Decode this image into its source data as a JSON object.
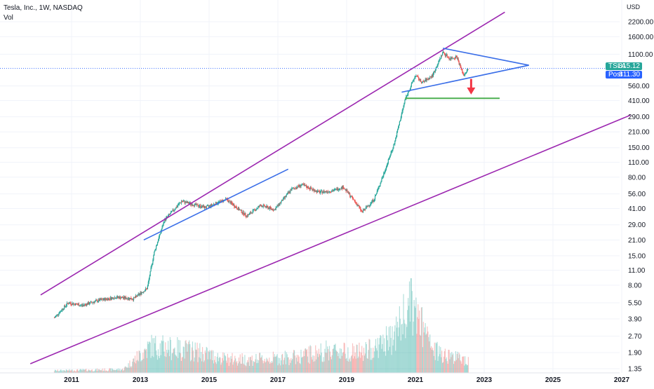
{
  "header": {
    "title": "Tesla, Inc., 1W, NASDAQ",
    "volume_label": "Vol"
  },
  "price_badges": {
    "last": {
      "symbol": "TSLA",
      "price": "815.12"
    },
    "post": {
      "label": "Post",
      "price": "811.30"
    }
  },
  "chart_data": {
    "type": "candlestick",
    "title": "Tesla, Inc., 1W, NASDAQ",
    "y_scale": "log",
    "y_unit": "USD",
    "y_ticks": [
      "2200.00",
      "1600.00",
      "1100.00",
      "560.00",
      "410.00",
      "290.00",
      "210.00",
      "150.00",
      "110.00",
      "80.00",
      "56.00",
      "41.00",
      "29.00",
      "21.00",
      "15.00",
      "11.00",
      "8.00",
      "5.50",
      "3.90",
      "2.70",
      "1.90",
      "1.35"
    ],
    "x_ticks": [
      "2011",
      "2013",
      "2015",
      "2017",
      "2019",
      "2021",
      "2023",
      "2025",
      "2027"
    ],
    "xlim": [
      2010.0,
      2027.25
    ],
    "last_price": 815.12,
    "post_price": 811.3,
    "price_path": [
      [
        2010.5,
        4.0
      ],
      [
        2010.9,
        5.5
      ],
      [
        2011.3,
        5.2
      ],
      [
        2011.8,
        5.8
      ],
      [
        2012.3,
        6.2
      ],
      [
        2012.8,
        6.0
      ],
      [
        2013.2,
        7.5
      ],
      [
        2013.4,
        16.0
      ],
      [
        2013.7,
        32.0
      ],
      [
        2014.2,
        48.0
      ],
      [
        2014.5,
        45.0
      ],
      [
        2014.9,
        42.0
      ],
      [
        2015.5,
        50.0
      ],
      [
        2016.1,
        35.0
      ],
      [
        2016.5,
        44.0
      ],
      [
        2016.9,
        40.0
      ],
      [
        2017.4,
        62.0
      ],
      [
        2017.7,
        68.0
      ],
      [
        2018.2,
        58.0
      ],
      [
        2018.6,
        60.0
      ],
      [
        2018.9,
        65.0
      ],
      [
        2019.3,
        45.0
      ],
      [
        2019.45,
        38.0
      ],
      [
        2019.8,
        50.0
      ],
      [
        2020.1,
        90.0
      ],
      [
        2020.4,
        170.0
      ],
      [
        2020.7,
        420.0
      ],
      [
        2021.0,
        700.0
      ],
      [
        2021.2,
        600.0
      ],
      [
        2021.5,
        700.0
      ],
      [
        2021.8,
        1150.0
      ],
      [
        2022.0,
        1000.0
      ],
      [
        2022.2,
        1050.0
      ],
      [
        2022.4,
        700.0
      ],
      [
        2022.55,
        815.0
      ]
    ],
    "volume_profile": [
      [
        2010.5,
        1
      ],
      [
        2012.5,
        1.5
      ],
      [
        2013.3,
        12
      ],
      [
        2014.5,
        10
      ],
      [
        2015.5,
        6
      ],
      [
        2016.5,
        6
      ],
      [
        2017.5,
        7
      ],
      [
        2018.5,
        10
      ],
      [
        2019.5,
        9
      ],
      [
        2020.3,
        15
      ],
      [
        2020.9,
        30
      ],
      [
        2021.5,
        10
      ],
      [
        2022.4,
        6
      ]
    ],
    "trendlines": [
      {
        "color": "#9c27b0",
        "points": [
          [
            2010.1,
            6.5
          ],
          [
            2023.6,
            2700.0
          ]
        ]
      },
      {
        "color": "#9c27b0",
        "points": [
          [
            2009.8,
            1.5
          ],
          [
            2027.25,
            300.0
          ]
        ]
      },
      {
        "color": "#3a6ee8",
        "points": [
          [
            2013.1,
            21.0
          ],
          [
            2017.3,
            95.0
          ]
        ]
      },
      {
        "color": "#3a6ee8",
        "points": [
          [
            2020.6,
            490.0
          ],
          [
            2024.3,
            870.0
          ]
        ]
      },
      {
        "color": "#3a6ee8",
        "points": [
          [
            2021.8,
            1250.0
          ],
          [
            2024.3,
            870.0
          ]
        ]
      },
      {
        "color": "#4caf50",
        "points": [
          [
            2020.7,
            430.0
          ],
          [
            2023.45,
            430.0
          ]
        ]
      }
    ],
    "arrow": {
      "color": "#f23645",
      "from": [
        2022.62,
        650.0
      ],
      "to": [
        2022.62,
        480.0
      ]
    },
    "colors": {
      "up": "#26a69a",
      "down": "#ef5350",
      "grid": "#f0f3fa",
      "price_line": "#2962ff"
    }
  }
}
